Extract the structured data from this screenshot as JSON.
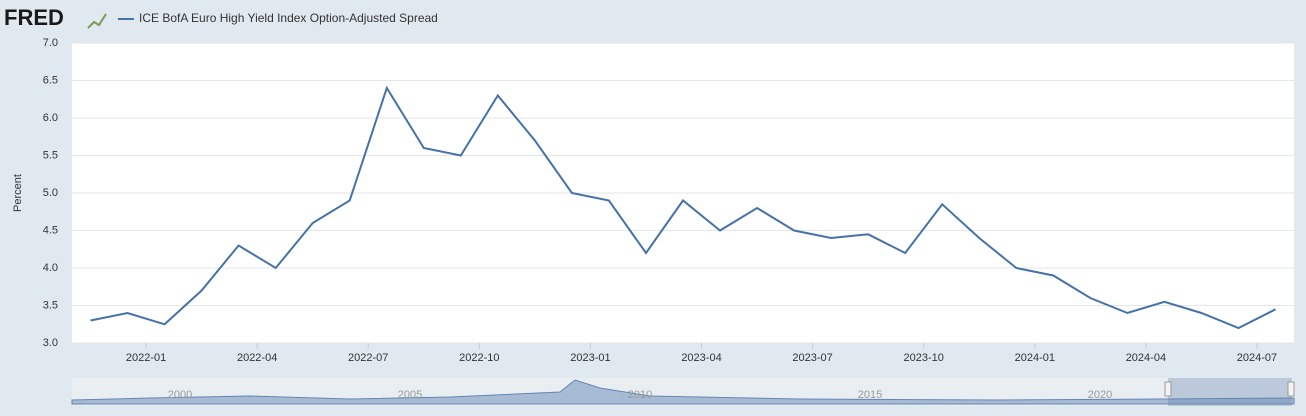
{
  "brand": "FRED",
  "navigator_labels": [
    "2000",
    "2005",
    "2010",
    "2015",
    "2020"
  ],
  "chart_data": {
    "type": "line",
    "y_label": "Percent",
    "x": [
      "2021-11",
      "2021-12",
      "2022-01",
      "2022-02",
      "2022-03",
      "2022-04",
      "2022-05",
      "2022-06",
      "2022-07",
      "2022-08",
      "2022-09",
      "2022-10",
      "2022-11",
      "2022-12",
      "2023-01",
      "2023-02",
      "2023-03",
      "2023-04",
      "2023-05",
      "2023-06",
      "2023-07",
      "2023-08",
      "2023-09",
      "2023-10",
      "2023-11",
      "2023-12",
      "2024-01",
      "2024-02",
      "2024-03",
      "2024-04",
      "2024-05",
      "2024-06",
      "2024-07"
    ],
    "series": [
      {
        "name": "ICE BofA Euro High Yield Index Option-Adjusted Spread",
        "color": "#4572a7",
        "values": [
          3.3,
          3.4,
          3.25,
          3.7,
          4.3,
          4.0,
          4.6,
          4.9,
          6.4,
          5.6,
          5.5,
          6.3,
          5.7,
          5.0,
          4.9,
          4.2,
          4.9,
          4.5,
          4.8,
          4.5,
          4.4,
          4.45,
          4.2,
          4.85,
          4.4,
          4.0,
          3.9,
          3.6,
          3.4,
          3.55,
          3.4,
          3.2,
          3.45
        ]
      }
    ],
    "xlim": [
      "2021-11",
      "2024-08"
    ],
    "xticks": [
      "2022-01",
      "2022-04",
      "2022-07",
      "2022-10",
      "2023-01",
      "2023-04",
      "2023-07",
      "2023-10",
      "2024-01",
      "2024-04",
      "2024-07"
    ],
    "ylim": [
      3,
      7
    ],
    "yticks": [
      {
        "value": 3,
        "label": "3.0"
      },
      {
        "value": 3.5,
        "label": "3.5"
      },
      {
        "value": 4,
        "label": "4.0"
      },
      {
        "value": 4.5,
        "label": "4.5"
      },
      {
        "value": 5,
        "label": "5.0"
      },
      {
        "value": 5.5,
        "label": "5.5"
      },
      {
        "value": 6,
        "label": "6.0"
      },
      {
        "value": 6.5,
        "label": "6.5"
      },
      {
        "value": 7,
        "label": "7.0"
      }
    ],
    "grid": true
  }
}
